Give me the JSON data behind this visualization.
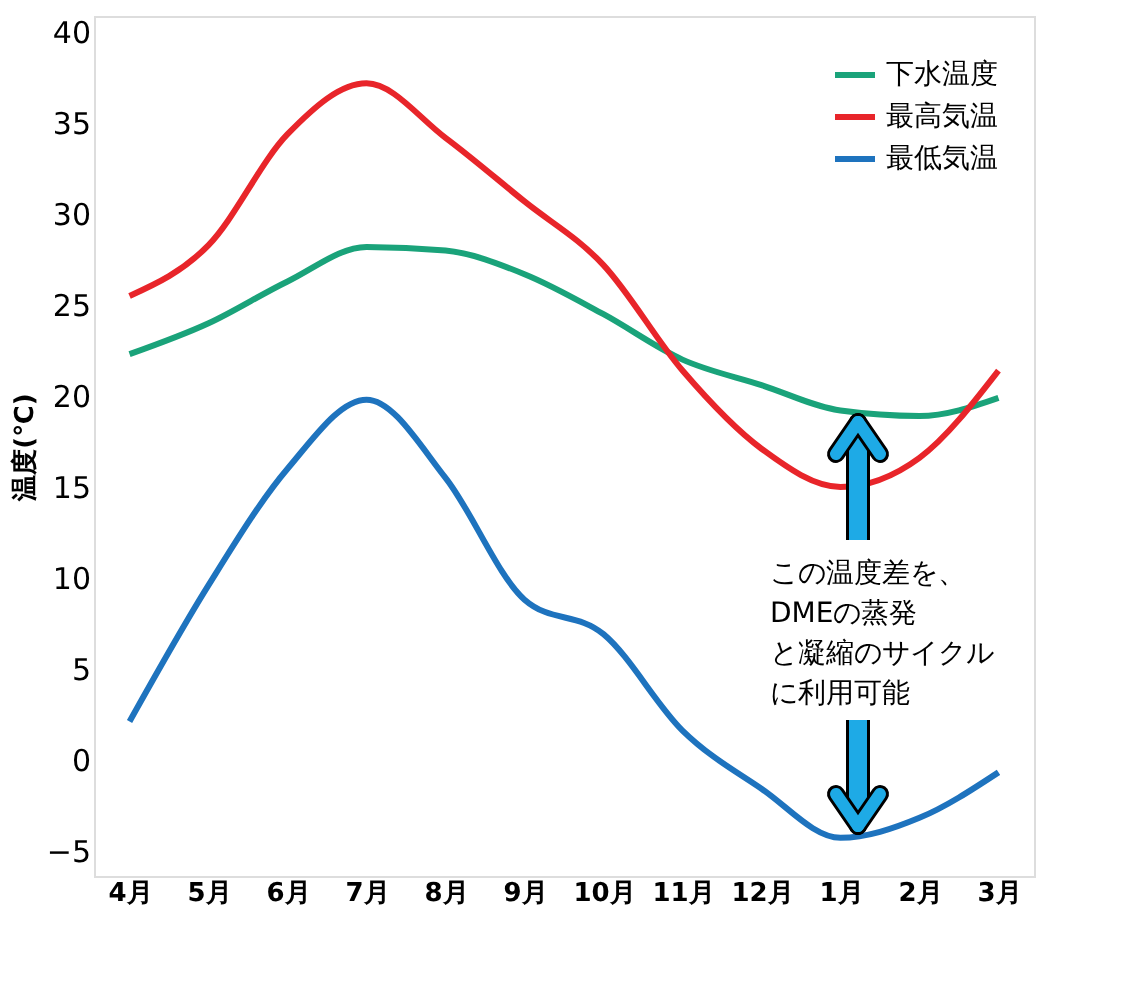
{
  "chart_data": {
    "type": "line",
    "ylabel": "温度(℃)",
    "categories": [
      "4月",
      "5月",
      "6月",
      "7月",
      "8月",
      "9月",
      "10月",
      "11月",
      "12月",
      "1月",
      "2月",
      "3月"
    ],
    "ylim": [
      -6.4,
      40.9
    ],
    "yticks": [
      -5,
      0,
      5,
      10,
      15,
      20,
      25,
      30,
      35,
      40
    ],
    "series": [
      {
        "name": "下水温度",
        "color": "#1aa37a",
        "values": [
          22.3,
          24,
          26.3,
          28.2,
          28,
          26.7,
          24.5,
          22,
          20.6,
          19.2,
          18.9,
          19.9
        ]
      },
      {
        "name": "最高気温",
        "color": "#e8252a",
        "values": [
          25.5,
          28.3,
          34.4,
          37.2,
          34.2,
          30.7,
          27.2,
          21.4,
          17.1,
          15,
          16.6,
          21.4
        ]
      },
      {
        "name": "最低気温",
        "color": "#1e73be",
        "values": [
          2.1,
          9.6,
          16,
          19.8,
          15.5,
          8.8,
          6.9,
          1.6,
          -1.6,
          -4.3,
          -3.2,
          -0.7
        ]
      }
    ],
    "legend": "top right",
    "line_style": "solid",
    "marker": "none",
    "grid": false,
    "annotations": [
      "この温度差を、",
      "DMEの蒸発",
      "と凝縮のサイクル",
      "に利用可能"
    ]
  }
}
